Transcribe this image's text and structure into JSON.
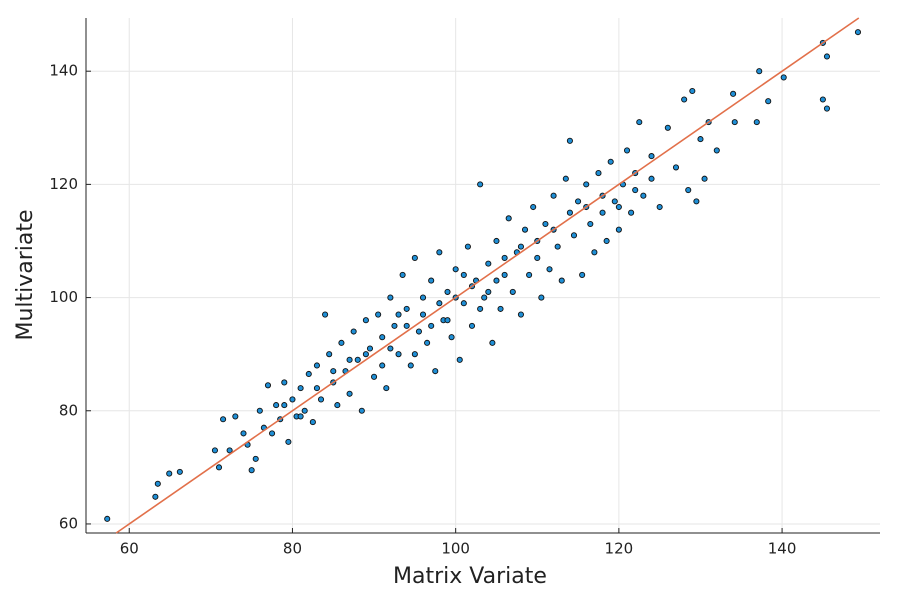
{
  "chart_data": {
    "type": "scatter",
    "xlabel": "Matrix Variate",
    "ylabel": "Multivariate",
    "xlim": [
      54.7,
      152
    ],
    "ylim": [
      58.4,
      149.4
    ],
    "xticks": [
      60,
      80,
      100,
      120,
      140
    ],
    "yticks": [
      60,
      80,
      100,
      120,
      140
    ],
    "grid": true,
    "series": [
      {
        "kind": "scatter",
        "color": "#1f8fd6",
        "x": [
          57.3,
          63.2,
          63.5,
          64.9,
          66.2,
          70.5,
          71,
          71.5,
          72.3,
          73,
          74,
          74.5,
          75,
          75.5,
          76,
          76.5,
          77,
          77.5,
          78,
          78.5,
          79,
          79.5,
          80,
          80.5,
          81,
          81.5,
          82,
          82.5,
          83,
          83.5,
          84,
          84.5,
          85,
          85.5,
          86,
          86.5,
          87,
          87.5,
          88,
          88.5,
          89,
          89.5,
          90,
          90.5,
          91,
          91.5,
          92,
          92.5,
          93,
          93.5,
          94,
          94.5,
          95,
          95.5,
          96,
          96.5,
          97,
          97.5,
          98,
          98.5,
          99,
          99.5,
          100,
          100.5,
          101,
          101.5,
          102,
          102.5,
          103,
          103.5,
          104,
          104.5,
          105,
          105.5,
          106,
          106.5,
          107,
          107.5,
          108,
          108.5,
          109,
          109.5,
          110,
          110.5,
          111,
          111.5,
          112,
          112.5,
          113,
          113.5,
          114,
          114.5,
          115,
          115.5,
          116,
          116.5,
          117,
          117.5,
          118,
          118.5,
          119,
          119.5,
          120,
          120.5,
          121,
          121.5,
          122,
          122.5,
          123,
          124,
          125,
          126,
          127,
          128,
          128.5,
          129,
          129.5,
          130,
          130.5,
          131,
          132,
          134,
          134.2,
          136.9,
          137.2,
          138.3,
          140.2,
          145,
          145.5,
          145.5,
          145,
          149.3,
          92,
          94,
          96,
          98,
          100,
          102,
          104,
          106,
          108,
          110,
          95,
          99,
          101,
          103,
          105,
          97,
          93,
          91,
          89,
          87,
          85,
          83,
          81,
          79,
          112,
          114,
          116,
          118,
          120,
          122,
          124
        ],
        "values": [
          60.9,
          64.8,
          67.1,
          68.9,
          69.2,
          73,
          70,
          78.5,
          73,
          79,
          76,
          74,
          69.5,
          71.5,
          80,
          77,
          84.5,
          76,
          81,
          78.5,
          85,
          74.5,
          82,
          79,
          84,
          80,
          86.5,
          78,
          88,
          82,
          97,
          90,
          85,
          81,
          92,
          87,
          83,
          94,
          89,
          80,
          96,
          91,
          86,
          97,
          93,
          84,
          100,
          95,
          90,
          104,
          98,
          88,
          107,
          94,
          100,
          92,
          103,
          87,
          108,
          96,
          101,
          93,
          105,
          89,
          99,
          109,
          95,
          103,
          120,
          100,
          106,
          92,
          110,
          98,
          104,
          114,
          101,
          108,
          97,
          112,
          104,
          116,
          107,
          100,
          113,
          105,
          118,
          109,
          103,
          121,
          127.7,
          111,
          117,
          104,
          120,
          113,
          108,
          122,
          115,
          110,
          124,
          117,
          112,
          120,
          126,
          115,
          122,
          131,
          118,
          125,
          116,
          130,
          123,
          135,
          119,
          136.5,
          117,
          128,
          121,
          131,
          126,
          136,
          131,
          131,
          140,
          134.7,
          138.9,
          135,
          133.4,
          142.6,
          145,
          146.9,
          91,
          95,
          97,
          99,
          100,
          102,
          101,
          107,
          109,
          110,
          90,
          96,
          104,
          98,
          103,
          95,
          97,
          88,
          90,
          89,
          87,
          84,
          79,
          81,
          112,
          115,
          116,
          118,
          116,
          119,
          121
        ]
      },
      {
        "kind": "line",
        "color": "#e2704a",
        "x": [
          58.4,
          149.4
        ],
        "values": [
          58.4,
          149.4
        ]
      }
    ]
  }
}
